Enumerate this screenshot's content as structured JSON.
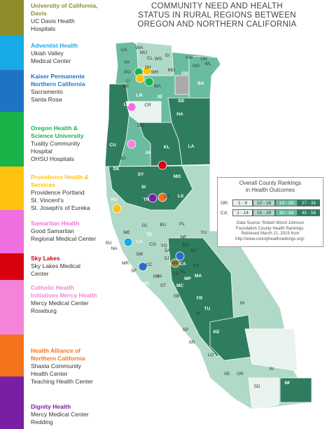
{
  "title": [
    "COMMUNITY NEED AND HEALTH",
    "STATUS IN RURAL REGIONS BETWEEN",
    "OREGON AND NORTHERN CALIFORNIA"
  ],
  "systems": [
    {
      "name": "University of California, Davis",
      "facilities": [
        "UC Davis Health",
        "Hospitals"
      ],
      "color": "#8c8c2a"
    },
    {
      "name": "Adventist Health",
      "facilities": [
        "Ukiah Valley",
        "Medical Center"
      ],
      "color": "#17a9e8"
    },
    {
      "name": "Kaiser Permanente Northern California",
      "facilities": [
        "Sacramento",
        "Santa Rosa"
      ],
      "color": "#1f73c7"
    },
    {
      "name": "Oregon Health & Science University",
      "facilities": [
        "Tuality Community",
        "Hospital",
        "OHSU Hospitals"
      ],
      "color": "#19b34a"
    },
    {
      "name": "Providence Health & Services",
      "facilities": [
        "Providence Portland",
        "St. Vincent's",
        "St. Joseph's of Eureka"
      ],
      "color": "#ffc20e"
    },
    {
      "name": "Samaritan Health",
      "facilities": [
        "Good Samaritan",
        "Regional Medical Center"
      ],
      "color": "#f06fe0"
    },
    {
      "name": "Sky Lakes",
      "facilities": [
        "Sky Lakes Medical",
        "Center"
      ],
      "color": "#d7000f"
    },
    {
      "name": "Catholic Health Initiatives Mercy Health",
      "facilities": [
        "Mercy Medical Center",
        "Roseburg"
      ],
      "color": "#f384d9"
    },
    {
      "name": "Health Alliance of Northern California",
      "facilities": [
        "Shasta Community",
        "Health Center",
        "Teaching Health Center"
      ],
      "color": "#f5731c"
    },
    {
      "name": "Dignity Health",
      "facilities": [
        "Mercy Medical Center",
        "Redding"
      ],
      "color": "#7a1ea6"
    }
  ],
  "legend": {
    "title": [
      "Overall County Rankings",
      "in Health Outcomes"
    ],
    "or_label": "OR:",
    "ca_label": "CA:",
    "or_ranges": [
      "1 - 9",
      "10 - 18",
      "19 - 26",
      "27 - 35"
    ],
    "ca_ranges": [
      "1 - 14",
      "15 - 29",
      "30 - 44",
      "45 - 58"
    ],
    "colors": [
      "#e8f3ef",
      "#b1d9c8",
      "#6abca0",
      "#2f7d5f"
    ],
    "source": [
      "Data Source: Robert Wood Johnson",
      "Foundation County Health Rankings.",
      "Retrieved March 21, 2019 from",
      "http://www.countyhealthrankings.org/."
    ]
  },
  "counties": {
    "oregon": [
      "CA",
      "WA",
      "MU",
      "CL",
      "YA",
      "PO",
      "LI",
      "BE",
      "LC",
      "DO",
      "CU",
      "JO",
      "JA",
      "KL",
      "LA",
      "HA",
      "DE",
      "JE",
      "WH",
      "SH",
      "WS",
      "GI",
      "MO",
      "UM",
      "UN",
      "WL",
      "BA",
      "MA",
      "GR",
      "CR",
      "HO",
      "LN"
    ],
    "california": [
      "DE",
      "SY",
      "MO",
      "SI",
      "HU",
      "TR",
      "LS",
      "SH",
      "PL",
      "NE",
      "YU",
      "ME",
      "GL",
      "BU",
      "TE",
      "CO",
      "LA",
      "YO",
      "AP",
      "ED",
      "SA",
      "SU",
      "NA",
      "SM",
      "SJ",
      "MR",
      "SF",
      "AL",
      "CC",
      "SO",
      "TO",
      "MN",
      "MA",
      "CA",
      "SN",
      "SC",
      "MC",
      "ST",
      "SB",
      "MP",
      "FR",
      "IN",
      "KI",
      "TU",
      "SL",
      "SP",
      "KE",
      "SR",
      "LO",
      "VE",
      "OR",
      "RI",
      "SD",
      "IM"
    ]
  }
}
